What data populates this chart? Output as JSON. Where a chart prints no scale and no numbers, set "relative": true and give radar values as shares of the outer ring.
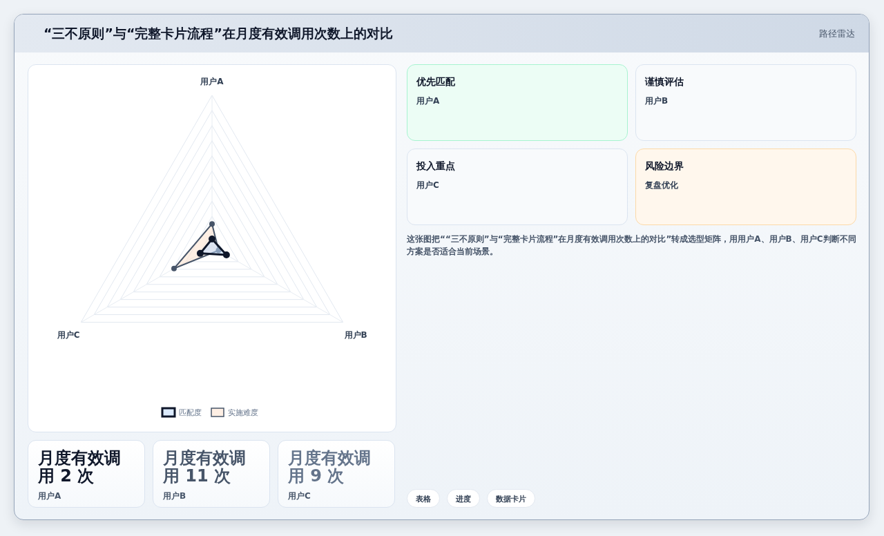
{
  "chart_data": [
    {
      "type": "radar",
      "title": "“三不原则”与“完整卡片流程”在月度有效调用次数上的对比",
      "annotations": [
        "路径雷达"
      ],
      "categories": [
        "用户A",
        "用户B",
        "用户C"
      ],
      "relative": true,
      "legend": "bottom",
      "marker": "circle",
      "series": [
        {
          "name": "匹配度",
          "color": "#0f172a",
          "values": [
            0.05,
            0.11,
            0.09
          ]
        },
        {
          "name": "实施难度",
          "color": "#475569",
          "values": [
            0.15,
            0.05,
            0.29
          ]
        }
      ]
    },
    {
      "type": "other",
      "categories": [
        "用户A",
        "用户B",
        "用户C"
      ],
      "value_labels": [
        "月度有效调用 2 次",
        "月度有效调用 11 次",
        "月度有效调用 9 次"
      ]
    },
    {
      "type": "other",
      "annotations": [
        "优先匹配",
        "用户A",
        "谨慎评估",
        "用户B",
        "投入重点",
        "用户C",
        "风险边界",
        "复盘优化",
        "这张图把““三不原则”与“完整卡片流程”在月度有效调用次数上的对比”转成选型矩阵，用用户A、用户B、用户C判断不同方案是否适合当前场景。",
        "表格",
        "进度",
        "数据卡片"
      ]
    }
  ]
}
